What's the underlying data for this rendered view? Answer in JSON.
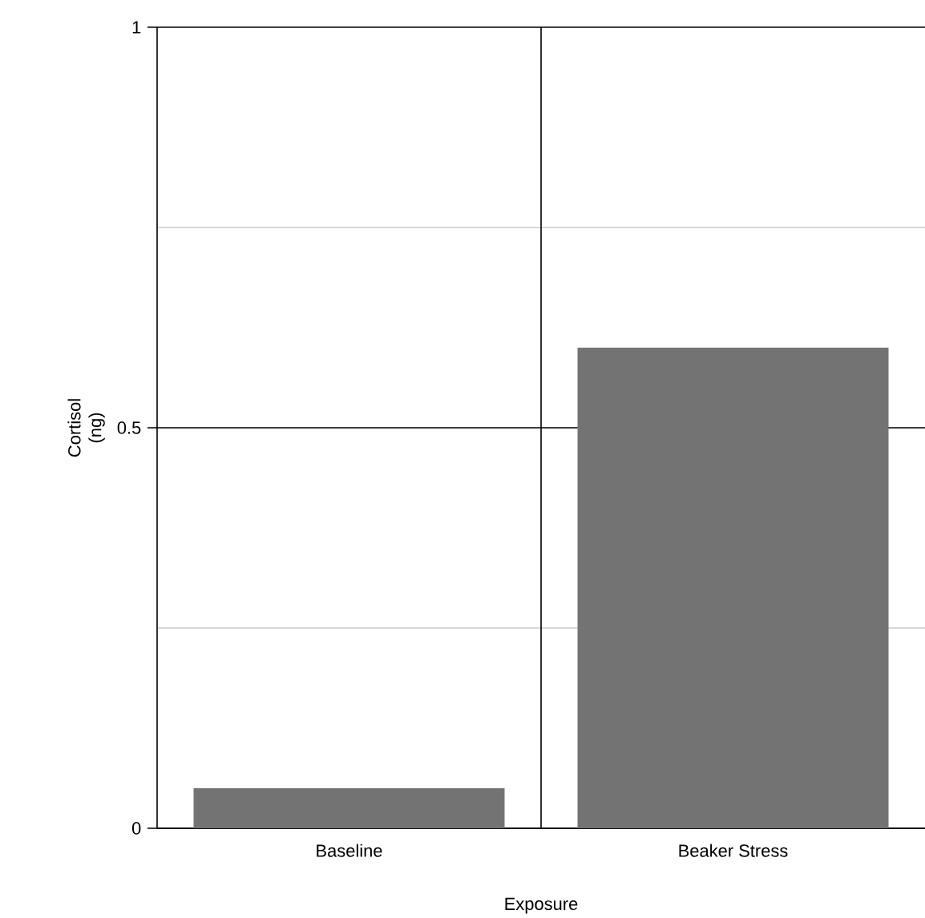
{
  "chart_data": {
    "type": "bar",
    "xlabel": "Exposure",
    "ylabel": "Cortisol (ng)",
    "categories": [
      "Baseline",
      "Beaker Stress"
    ],
    "values": [
      0.05,
      0.6
    ],
    "color": "#737373",
    "ylim": [
      0,
      1
    ],
    "yticks": [
      0,
      {
        "value": 0.25,
        "label": null
      },
      0.5,
      {
        "value": 0.75,
        "label": null
      },
      1
    ],
    "grid": true
  }
}
